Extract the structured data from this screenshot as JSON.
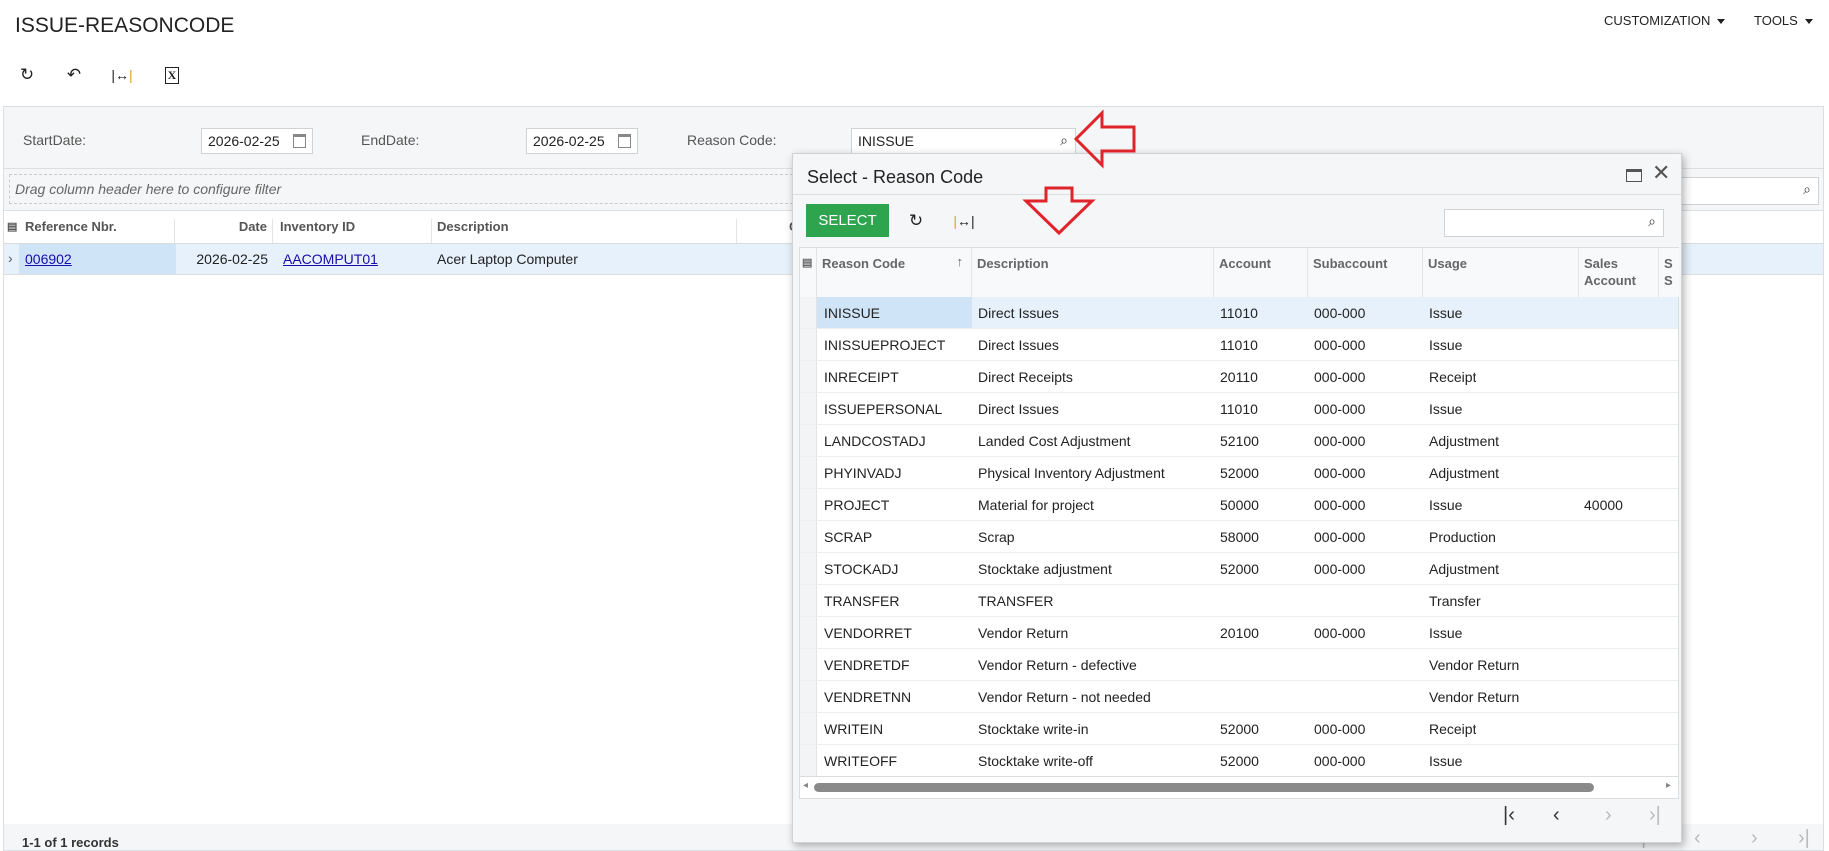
{
  "page": {
    "title": "ISSUE-REASONCODE",
    "menus": [
      "CUSTOMIZATION",
      "TOOLS"
    ]
  },
  "toolbar": {
    "icons": [
      "refresh-icon",
      "undo-icon",
      "fit-columns-icon",
      "excel-export-icon"
    ]
  },
  "filters": {
    "start_label": "StartDate:",
    "start_value": "2026-02-25",
    "end_label": "EndDate:",
    "end_value": "2026-02-25",
    "reason_label": "Reason Code:",
    "reason_value": "INISSUE"
  },
  "main_grid": {
    "drag_hint": "Drag column header here to configure filter",
    "columns": [
      "Reference Nbr.",
      "Date",
      "Inventory ID",
      "Description",
      "C"
    ],
    "rows": [
      {
        "ref": "006902",
        "date": "2026-02-25",
        "inventory": "AACOMPUT01",
        "description": "Acer Laptop Computer"
      }
    ],
    "footer": "1-1 of 1 records"
  },
  "dialog": {
    "title": "Select - Reason Code",
    "select_label": "SELECT",
    "search_placeholder": "",
    "columns": [
      "Reason Code",
      "Description",
      "Account",
      "Subaccount",
      "Usage",
      "Sales Account",
      "S S"
    ],
    "rows": [
      [
        "INISSUE",
        "Direct Issues",
        "11010",
        "000-000",
        "Issue",
        ""
      ],
      [
        "INISSUEPROJECT",
        "Direct Issues",
        "11010",
        "000-000",
        "Issue",
        ""
      ],
      [
        "INRECEIPT",
        "Direct Receipts",
        "20110",
        "000-000",
        "Receipt",
        ""
      ],
      [
        "ISSUEPERSONAL",
        "Direct Issues",
        "11010",
        "000-000",
        "Issue",
        ""
      ],
      [
        "LANDCOSTADJ",
        "Landed Cost Adjustment",
        "52100",
        "000-000",
        "Adjustment",
        ""
      ],
      [
        "PHYINVADJ",
        "Physical Inventory Adjustment",
        "52000",
        "000-000",
        "Adjustment",
        ""
      ],
      [
        "PROJECT",
        "Material for project",
        "50000",
        "000-000",
        "Issue",
        "40000"
      ],
      [
        "SCRAP",
        "Scrap",
        "58000",
        "000-000",
        "Production",
        ""
      ],
      [
        "STOCKADJ",
        "Stocktake adjustment",
        "52000",
        "000-000",
        "Adjustment",
        ""
      ],
      [
        "TRANSFER",
        "TRANSFER",
        "",
        "",
        "Transfer",
        ""
      ],
      [
        "VENDORRET",
        "Vendor Return",
        "20100",
        "000-000",
        "Issue",
        ""
      ],
      [
        "VENDRETDF",
        "Vendor Return - defective",
        "",
        "",
        "Vendor Return",
        ""
      ],
      [
        "VENDRETNN",
        "Vendor Return - not needed",
        "",
        "",
        "Vendor Return",
        ""
      ],
      [
        "WRITEIN",
        "Stocktake write-in",
        "52000",
        "000-000",
        "Receipt",
        ""
      ],
      [
        "WRITEOFF",
        "Stocktake write-off",
        "52000",
        "000-000",
        "Issue",
        ""
      ]
    ]
  },
  "colors": {
    "accent_green": "#2ea44f",
    "selected_row": "#e6f1fb",
    "selected_cell": "#cfe4f6",
    "annotation_arrow": "#e0242b"
  }
}
